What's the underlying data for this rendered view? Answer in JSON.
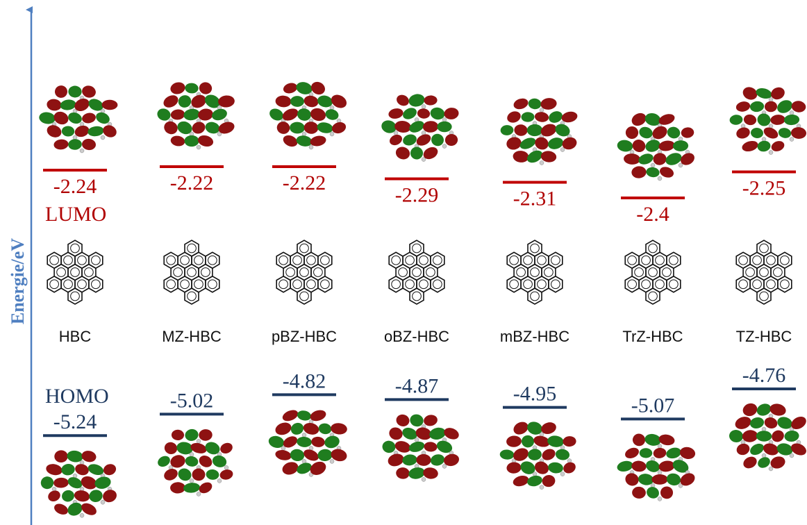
{
  "axis_label": "Energie/eV",
  "lumo_label": "LUMO",
  "homo_label": "HOMO",
  "molecules": [
    {
      "name": "HBC",
      "lumo": -2.24,
      "homo": -5.24
    },
    {
      "name": "MZ-HBC",
      "lumo": -2.22,
      "homo": -5.02
    },
    {
      "name": "pBZ-HBC",
      "lumo": -2.22,
      "homo": -4.82
    },
    {
      "name": "oBZ-HBC",
      "lumo": -2.29,
      "homo": -4.87
    },
    {
      "name": "mBZ-HBC",
      "lumo": -2.31,
      "homo": -4.95
    },
    {
      "name": "TrZ-HBC",
      "lumo": -2.4,
      "homo": -5.07
    },
    {
      "name": "TZ-HBC",
      "lumo": -2.25,
      "homo": -4.76
    }
  ]
}
